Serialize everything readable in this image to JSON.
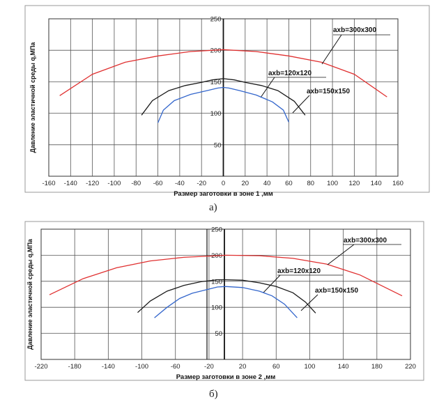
{
  "chart_data": [
    {
      "type": "line",
      "panel_label": "а)",
      "xlabel": "Размер заготовки в зоне 1 ,мм",
      "ylabel": "Давление эластичной среды   q,МПа",
      "xlim": [
        -160,
        160
      ],
      "ylim": [
        0,
        250
      ],
      "x_ticks": [
        -160,
        -140,
        -120,
        -100,
        -80,
        -60,
        -40,
        -20,
        0,
        20,
        40,
        60,
        80,
        100,
        120,
        140,
        160
      ],
      "y_ticks": [
        50,
        100,
        150,
        200,
        250
      ],
      "grid": true,
      "series": [
        {
          "name": "axb=300x300",
          "color": "#e03030",
          "x": [
            -150,
            -120,
            -90,
            -60,
            -30,
            0,
            30,
            60,
            90,
            120,
            150
          ],
          "y": [
            128,
            162,
            181,
            191,
            198,
            201,
            198,
            191,
            181,
            162,
            126
          ]
        },
        {
          "name": "axb=120x120",
          "color": "#1a1a1a",
          "x": [
            -75,
            -65,
            -50,
            -35,
            -20,
            -10,
            0,
            10,
            20,
            35,
            50,
            65,
            75
          ],
          "y": [
            97,
            120,
            136,
            144,
            149,
            153,
            155,
            153,
            149,
            144,
            136,
            119,
            97
          ]
        },
        {
          "name": "axb=150x150",
          "color": "#3366cc",
          "x": [
            -60,
            -55,
            -45,
            -30,
            -15,
            -5,
            0,
            5,
            15,
            30,
            45,
            55,
            60
          ],
          "y": [
            85,
            105,
            120,
            130,
            136,
            140,
            141,
            140,
            136,
            129,
            118,
            105,
            86
          ]
        }
      ]
    },
    {
      "type": "line",
      "panel_label": "б)",
      "xlabel": "Размер заготовки в зоне 2 ,мм",
      "ylabel": "Давление эластичной среды   q,МПа",
      "xlim": [
        -220,
        220
      ],
      "ylim": [
        0,
        250
      ],
      "x_ticks": [
        -220,
        -180,
        -140,
        -100,
        -60,
        -20,
        20,
        60,
        100,
        140,
        180,
        220
      ],
      "y_ticks": [
        50,
        100,
        150,
        200,
        250
      ],
      "grid": true,
      "series": [
        {
          "name": "axb=300x300",
          "color": "#e03030",
          "x": [
            -210,
            -170,
            -130,
            -90,
            -50,
            -10,
            0,
            40,
            80,
            120,
            160,
            210
          ],
          "y": [
            124,
            155,
            176,
            189,
            196,
            199,
            200,
            199,
            194,
            183,
            162,
            122
          ]
        },
        {
          "name": "axb=120x120",
          "color": "#1a1a1a",
          "x": [
            -105,
            -90,
            -70,
            -50,
            -30,
            -10,
            0,
            20,
            40,
            60,
            80,
            95,
            107
          ],
          "y": [
            90,
            112,
            131,
            142,
            149,
            153,
            153,
            152,
            147,
            140,
            128,
            110,
            89
          ]
        },
        {
          "name": "axb=150x150",
          "color": "#3366cc",
          "x": [
            -85,
            -70,
            -55,
            -40,
            -20,
            -10,
            0,
            20,
            40,
            55,
            70,
            85
          ],
          "y": [
            80,
            100,
            117,
            127,
            135,
            139,
            140,
            138,
            131,
            122,
            106,
            80
          ]
        }
      ]
    }
  ]
}
